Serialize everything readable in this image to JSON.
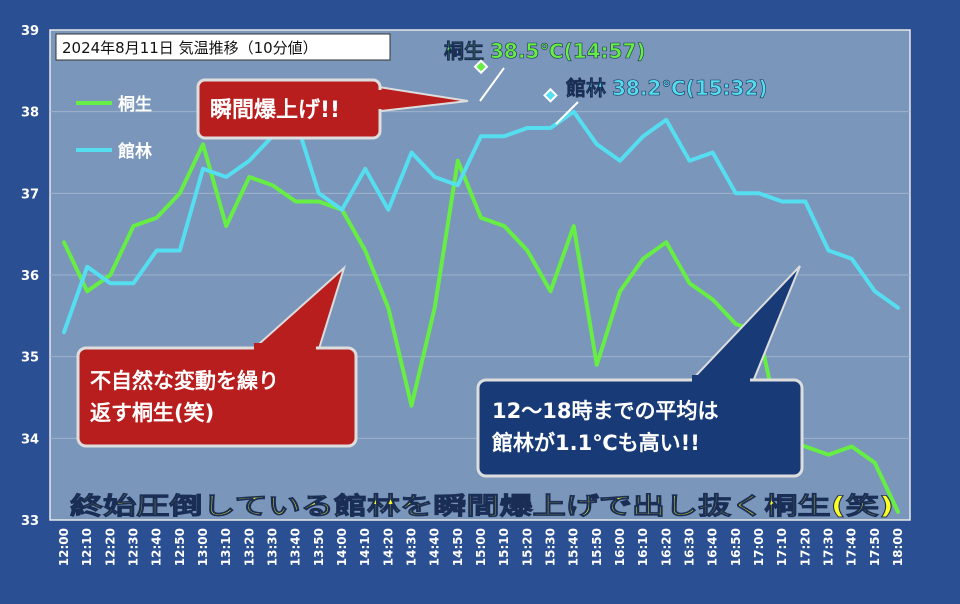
{
  "chart_data": {
    "type": "line",
    "title": "2024年8月11日 気温推移（10分値）",
    "xlabel": "",
    "ylabel": "",
    "ylim": [
      33,
      39
    ],
    "yticks": [
      33,
      34,
      35,
      36,
      37,
      38,
      39
    ],
    "grid": true,
    "legend_position": "top-left",
    "x": [
      "12:00",
      "12:10",
      "12:20",
      "12:30",
      "12:40",
      "12:50",
      "13:00",
      "13:10",
      "13:20",
      "13:30",
      "13:40",
      "13:50",
      "14:00",
      "14:10",
      "14:20",
      "14:30",
      "14:40",
      "14:50",
      "15:00",
      "15:10",
      "15:20",
      "15:30",
      "15:40",
      "15:50",
      "16:00",
      "16:10",
      "16:20",
      "16:30",
      "16:40",
      "16:50",
      "17:00",
      "17:10",
      "17:20",
      "17:30",
      "17:40",
      "17:50",
      "18:00"
    ],
    "series": [
      {
        "name": "桐生",
        "color": "#66ee44",
        "values": [
          36.4,
          35.8,
          36.0,
          36.6,
          36.7,
          37.0,
          37.6,
          36.6,
          37.2,
          37.1,
          36.9,
          36.9,
          36.8,
          36.3,
          35.6,
          34.4,
          35.6,
          37.4,
          36.7,
          36.6,
          36.3,
          35.8,
          36.6,
          34.9,
          35.8,
          36.2,
          36.4,
          35.9,
          35.7,
          35.4,
          35.3,
          34.0,
          33.9,
          33.8,
          33.9,
          33.7,
          33.1
        ]
      },
      {
        "name": "館林",
        "color": "#55ddf0",
        "values": [
          35.3,
          36.1,
          35.9,
          35.9,
          36.3,
          36.3,
          37.3,
          37.2,
          37.4,
          37.7,
          37.9,
          37.0,
          36.8,
          37.3,
          36.8,
          37.5,
          37.2,
          37.1,
          37.7,
          37.7,
          37.8,
          37.8,
          38.0,
          37.6,
          37.4,
          37.7,
          37.9,
          37.4,
          37.5,
          37.0,
          37.0,
          36.9,
          36.9,
          36.3,
          36.2,
          35.8,
          35.6
        ]
      }
    ],
    "peaks": [
      {
        "series": "桐生",
        "x": "15:00",
        "y": 38.55,
        "label_name": "桐生",
        "label_value": "38.5℃(14:57)"
      },
      {
        "series": "館林",
        "x": "15:30",
        "y": 38.2,
        "label_name": "館林",
        "label_value": "38.2℃(15:32)"
      }
    ],
    "annotations": {
      "spike": "瞬間爆上げ!!",
      "fluctuation_line1": "不自然な変動を繰り",
      "fluctuation_line2": "返す桐生(笑)",
      "average_line1": "12～18時までの平均は",
      "average_line2": "館林が1.1℃も高い!!",
      "bottom_caption": "終始圧倒している館林を瞬間爆上げで出し抜く桐生(笑)"
    }
  },
  "colors": {
    "background": "#2a4f93",
    "plot": "#7a96bb",
    "callout_red": "#b91e1e",
    "callout_navy": "#183b78",
    "caption_yellow": "#ffff22"
  }
}
